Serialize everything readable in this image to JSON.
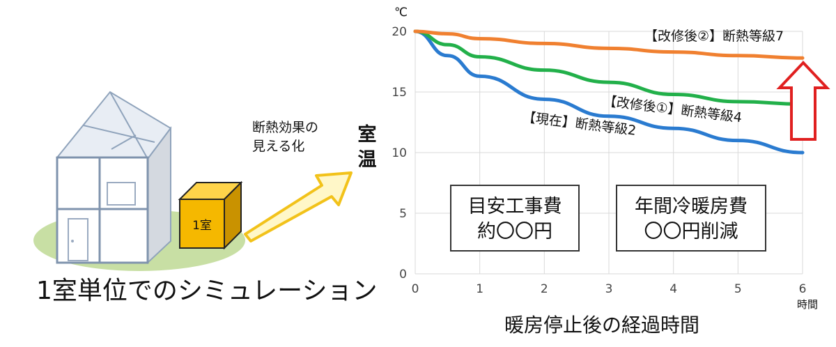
{
  "illustration": {
    "room_label": "1室",
    "caption": "1室単位でのシミュレーション",
    "note_lines": [
      "断熱効果の",
      "見える化"
    ]
  },
  "colors": {
    "current": "#2a7bd0",
    "renovation1": "#22b04a",
    "renovation2": "#f08030",
    "arrow": "#e02020",
    "callout_arrow": "#f2c21a",
    "room_box": "#f5b800",
    "lawn": "#c8dfa4"
  },
  "boxes": {
    "cost": {
      "line1": "目安工事費",
      "line2": "約〇〇円"
    },
    "annual": {
      "line1": "年間冷暖房費",
      "line2": "〇〇円削減"
    }
  },
  "chart_data": {
    "type": "line",
    "xlabel": "暖房停止後の経過時間",
    "xunit": "時間",
    "ylabel": "室温",
    "yunit": "℃",
    "xlim": [
      0,
      6
    ],
    "ylim": [
      0,
      20
    ],
    "xticks": [
      0,
      1,
      2,
      3,
      4,
      5,
      6
    ],
    "yticks": [
      0,
      5,
      10,
      15,
      20
    ],
    "grid": true,
    "x": [
      0,
      0.5,
      1,
      2,
      3,
      4,
      5,
      6
    ],
    "series": [
      {
        "name": "【現在】断熱等級2",
        "values": [
          20,
          18.0,
          16.3,
          14.4,
          13.0,
          12.0,
          11.0,
          10.0
        ]
      },
      {
        "name": "【改修後①】断熱等級4",
        "values": [
          20,
          18.9,
          17.9,
          16.8,
          15.8,
          14.8,
          14.2,
          14.0
        ]
      },
      {
        "name": "【改修後②】断熱等級7",
        "values": [
          20,
          19.8,
          19.4,
          19.0,
          18.6,
          18.3,
          18.0,
          17.8
        ]
      }
    ]
  }
}
